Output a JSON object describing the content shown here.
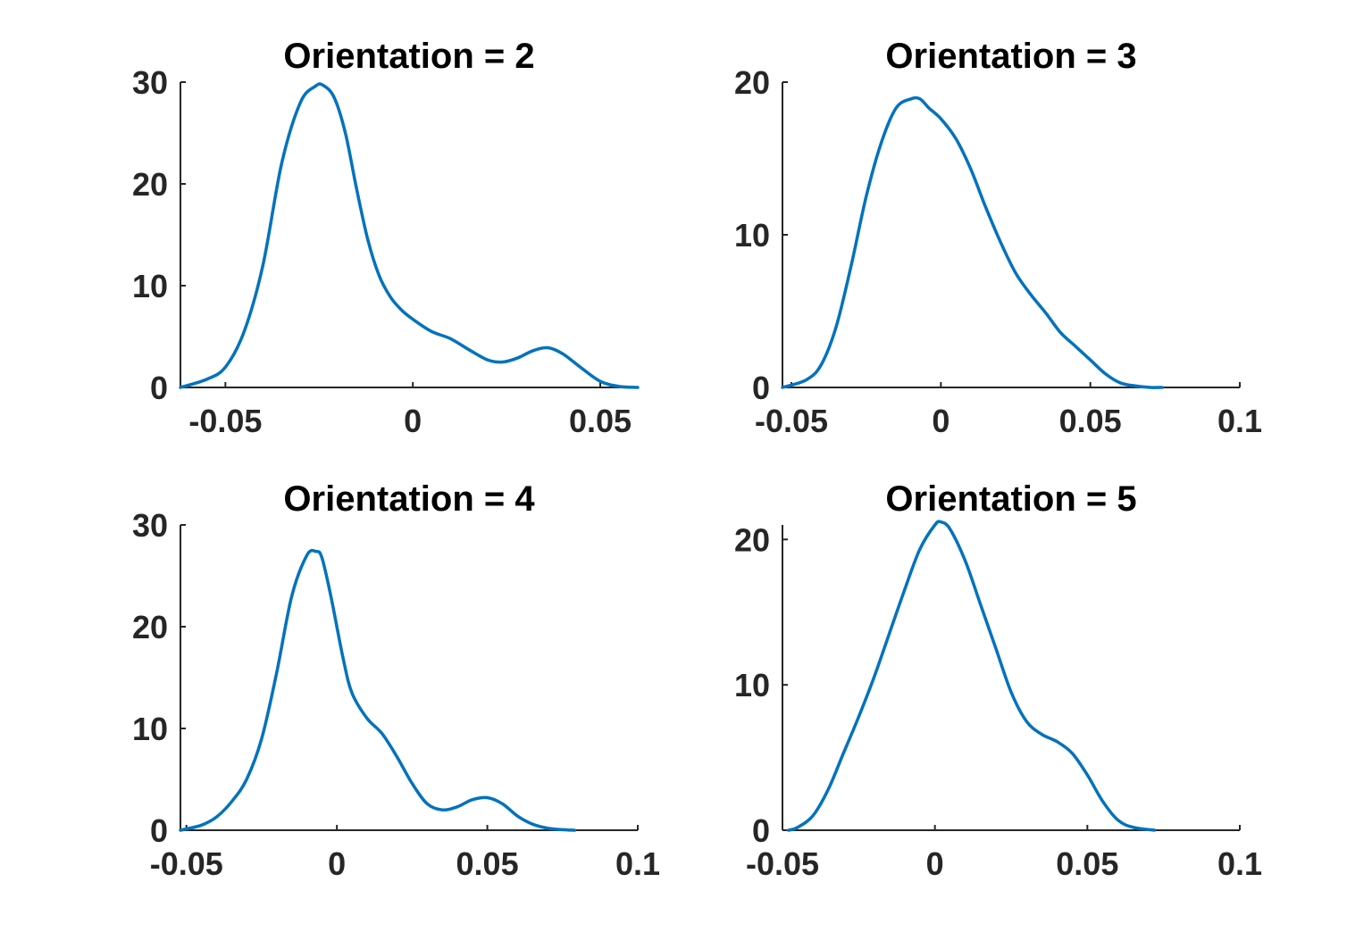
{
  "chart_data": [
    {
      "type": "line",
      "title": "Orientation = 2",
      "xlabel": "",
      "ylabel": "",
      "xlim": [
        -0.062,
        0.06
      ],
      "ylim": [
        0,
        30
      ],
      "xticks": [
        -0.05,
        0,
        0.05
      ],
      "xtick_labels": [
        "-0.05",
        "0",
        "0.05"
      ],
      "yticks": [
        0,
        10,
        20,
        30
      ],
      "ytick_labels": [
        "0",
        "10",
        "20",
        "30"
      ],
      "grid": false,
      "series": [
        {
          "color": "#0072BD",
          "x": [
            -0.062,
            -0.055,
            -0.05,
            -0.045,
            -0.04,
            -0.035,
            -0.03,
            -0.026,
            -0.024,
            -0.021,
            -0.018,
            -0.015,
            -0.012,
            -0.009,
            -0.006,
            -0.003,
            0.0,
            0.005,
            0.01,
            0.015,
            0.02,
            0.024,
            0.028,
            0.032,
            0.036,
            0.04,
            0.045,
            0.05,
            0.055,
            0.06
          ],
          "y": [
            0.0,
            0.8,
            2.0,
            5.5,
            12.0,
            22.0,
            28.0,
            29.6,
            29.7,
            28.5,
            25.0,
            19.5,
            14.5,
            11.0,
            8.9,
            7.6,
            6.7,
            5.5,
            4.8,
            3.7,
            2.7,
            2.5,
            2.9,
            3.6,
            3.9,
            3.3,
            1.9,
            0.6,
            0.1,
            0.0
          ]
        }
      ]
    },
    {
      "type": "line",
      "title": "Orientation = 3",
      "xlabel": "",
      "ylabel": "",
      "xlim": [
        -0.053,
        0.1
      ],
      "ylim": [
        0,
        20
      ],
      "xticks": [
        -0.05,
        0,
        0.05,
        0.1
      ],
      "xtick_labels": [
        "-0.05",
        "0",
        "0.05",
        "0.1"
      ],
      "yticks": [
        0,
        10,
        20
      ],
      "ytick_labels": [
        "0",
        "10",
        "20"
      ],
      "grid": false,
      "series": [
        {
          "color": "#0072BD",
          "x": [
            -0.053,
            -0.045,
            -0.04,
            -0.035,
            -0.03,
            -0.025,
            -0.02,
            -0.015,
            -0.01,
            -0.007,
            -0.004,
            0.0,
            0.005,
            0.01,
            0.015,
            0.02,
            0.025,
            0.03,
            0.035,
            0.04,
            0.045,
            0.05,
            0.055,
            0.06,
            0.065,
            0.07,
            0.074
          ],
          "y": [
            0.0,
            0.5,
            1.5,
            4.0,
            8.0,
            12.5,
            16.0,
            18.3,
            18.9,
            18.9,
            18.3,
            17.6,
            16.3,
            14.3,
            11.8,
            9.5,
            7.5,
            6.1,
            4.9,
            3.6,
            2.7,
            1.8,
            0.9,
            0.3,
            0.1,
            0.0,
            0.0
          ]
        }
      ]
    },
    {
      "type": "line",
      "title": "Orientation = 4",
      "xlabel": "",
      "ylabel": "",
      "xlim": [
        -0.052,
        0.1
      ],
      "ylim": [
        0,
        30
      ],
      "xticks": [
        -0.05,
        0,
        0.05,
        0.1
      ],
      "xtick_labels": [
        "-0.05",
        "0",
        "0.05",
        "0.1"
      ],
      "yticks": [
        0,
        10,
        20,
        30
      ],
      "ytick_labels": [
        "0",
        "10",
        "20",
        "30"
      ],
      "grid": false,
      "series": [
        {
          "color": "#0072BD",
          "x": [
            -0.052,
            -0.045,
            -0.04,
            -0.035,
            -0.03,
            -0.025,
            -0.02,
            -0.015,
            -0.01,
            -0.007,
            -0.005,
            -0.002,
            0.002,
            0.005,
            0.01,
            0.015,
            0.02,
            0.025,
            0.03,
            0.035,
            0.04,
            0.045,
            0.05,
            0.055,
            0.06,
            0.065,
            0.07,
            0.075,
            0.079
          ],
          "y": [
            0.0,
            0.5,
            1.3,
            2.8,
            5.0,
            9.0,
            15.5,
            23.0,
            27.0,
            27.4,
            26.8,
            23.0,
            17.0,
            13.5,
            11.0,
            9.5,
            7.2,
            4.6,
            2.6,
            2.0,
            2.3,
            3.0,
            3.2,
            2.6,
            1.4,
            0.6,
            0.2,
            0.05,
            0.0
          ]
        }
      ]
    },
    {
      "type": "line",
      "title": "Orientation = 5",
      "xlabel": "",
      "ylabel": "",
      "xlim": [
        -0.05,
        0.1
      ],
      "ylim": [
        0,
        21
      ],
      "xticks": [
        -0.05,
        0,
        0.05,
        0.1
      ],
      "xtick_labels": [
        "-0.05",
        "0",
        "0.05",
        "0.1"
      ],
      "yticks": [
        0,
        10,
        20
      ],
      "ytick_labels": [
        "0",
        "10",
        "20"
      ],
      "grid": false,
      "series": [
        {
          "color": "#0072BD",
          "x": [
            -0.048,
            -0.045,
            -0.04,
            -0.035,
            -0.03,
            -0.025,
            -0.02,
            -0.015,
            -0.01,
            -0.005,
            0.0,
            0.002,
            0.005,
            0.01,
            0.015,
            0.02,
            0.025,
            0.03,
            0.035,
            0.04,
            0.045,
            0.05,
            0.055,
            0.06,
            0.065,
            0.072
          ],
          "y": [
            0.0,
            0.2,
            1.0,
            2.8,
            5.3,
            7.8,
            10.5,
            13.5,
            16.5,
            19.3,
            21.0,
            21.2,
            20.7,
            18.5,
            15.5,
            12.5,
            9.5,
            7.5,
            6.6,
            6.1,
            5.3,
            3.8,
            2.0,
            0.7,
            0.2,
            0.0
          ]
        }
      ]
    }
  ]
}
